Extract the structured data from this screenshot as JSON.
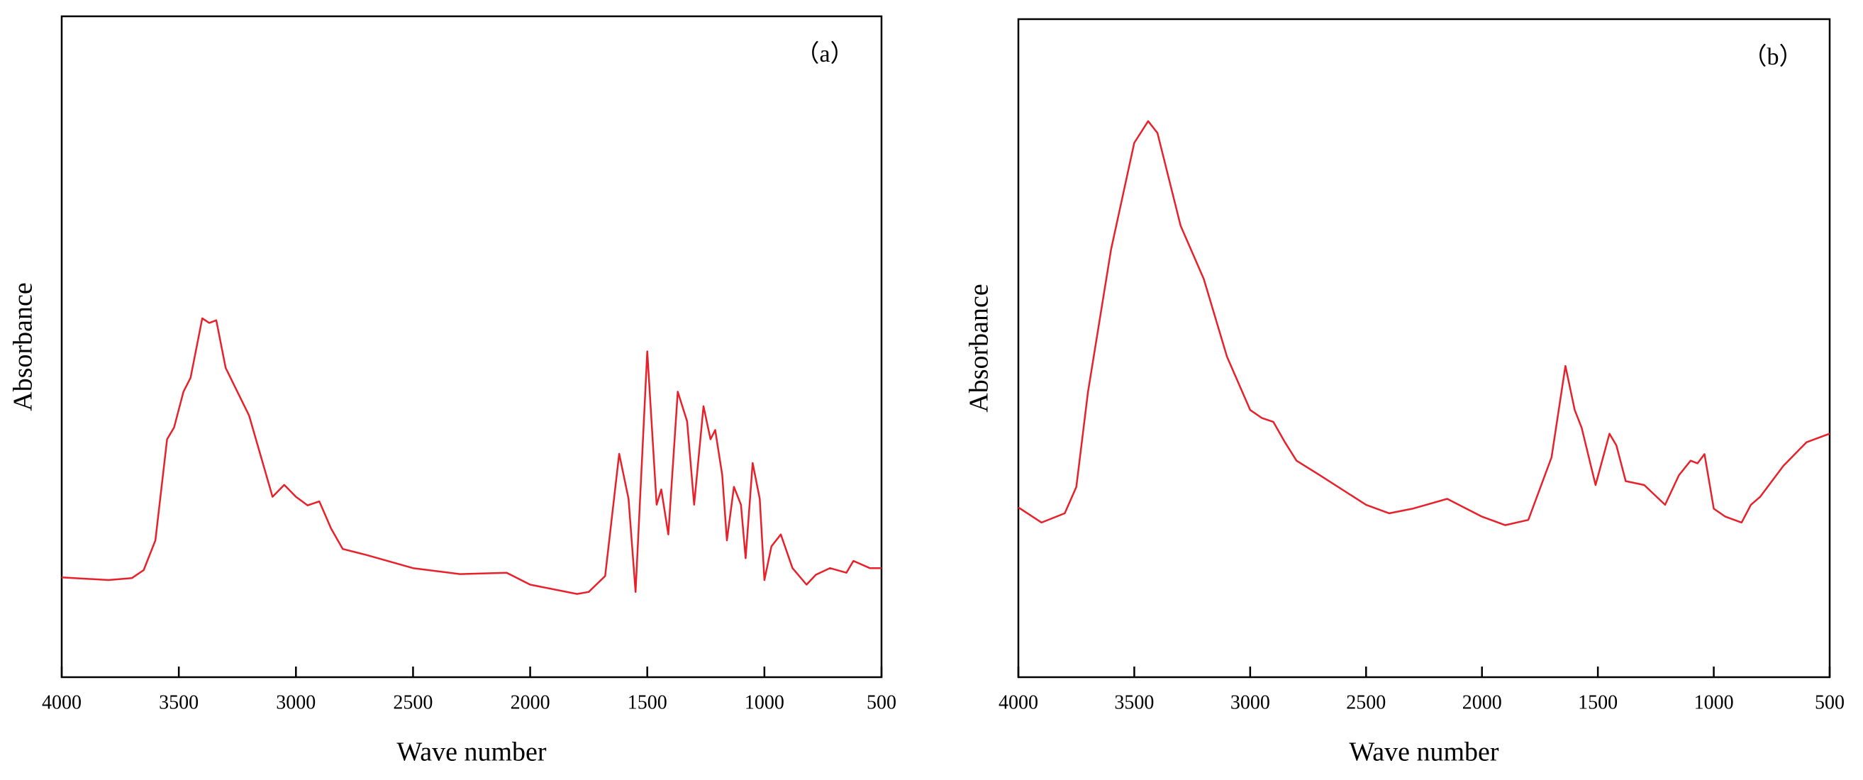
{
  "chart_data": [
    {
      "type": "line",
      "annotation": "（a）",
      "xlabel": "Wave number",
      "ylabel": "Absorbance",
      "xlim": [
        4000,
        500
      ],
      "xticks": [
        4000,
        3500,
        3000,
        2500,
        2000,
        1500,
        1000,
        500
      ],
      "ylim": [
        0,
        100
      ],
      "color": "#e8202a",
      "x": [
        4000,
        3800,
        3700,
        3650,
        3600,
        3550,
        3520,
        3480,
        3450,
        3400,
        3370,
        3340,
        3300,
        3200,
        3100,
        3050,
        3000,
        2950,
        2900,
        2850,
        2800,
        2700,
        2500,
        2300,
        2100,
        2000,
        1800,
        1750,
        1680,
        1620,
        1580,
        1550,
        1500,
        1460,
        1440,
        1410,
        1370,
        1330,
        1300,
        1260,
        1230,
        1210,
        1180,
        1160,
        1130,
        1100,
        1080,
        1050,
        1020,
        1000,
        970,
        930,
        880,
        820,
        780,
        720,
        650,
        620,
        550,
        500
      ],
      "values": [
        15.1,
        14.7,
        15,
        16.2,
        20.7,
        36,
        37.8,
        43.2,
        45.3,
        54.3,
        53.6,
        54,
        46.8,
        39.6,
        27.3,
        29.1,
        27.3,
        26,
        26.6,
        22.5,
        19.4,
        18.5,
        16.5,
        15.6,
        15.8,
        14,
        12.6,
        12.9,
        15.3,
        33.8,
        27,
        12.9,
        49.3,
        26.1,
        28.4,
        21.6,
        43.2,
        38.7,
        26.1,
        41,
        36,
        37.4,
        30.6,
        20.7,
        28.8,
        26.1,
        18,
        32.4,
        27,
        14.7,
        19.8,
        21.6,
        16.5,
        14,
        15.5,
        16.5,
        15.8,
        17.6,
        16.5,
        16.5
      ]
    },
    {
      "type": "line",
      "annotation": "（b）",
      "xlabel": "Wave number",
      "ylabel": "Absorbance",
      "xlim": [
        4000,
        500
      ],
      "xticks": [
        4000,
        3500,
        3000,
        2500,
        2000,
        1500,
        1000,
        500
      ],
      "ylim": [
        0,
        100
      ],
      "color": "#e8202a",
      "x": [
        4000,
        3900,
        3800,
        3750,
        3700,
        3600,
        3500,
        3440,
        3400,
        3300,
        3200,
        3100,
        3000,
        2950,
        2900,
        2850,
        2800,
        2700,
        2500,
        2400,
        2300,
        2150,
        2000,
        1900,
        1800,
        1700,
        1640,
        1600,
        1570,
        1510,
        1450,
        1420,
        1380,
        1300,
        1210,
        1150,
        1100,
        1070,
        1040,
        1000,
        950,
        880,
        840,
        800,
        700,
        600,
        500
      ],
      "values": [
        25.8,
        23.5,
        24.9,
        28.9,
        43.3,
        65,
        81.2,
        84.5,
        82.7,
        68.6,
        60.5,
        48.7,
        40.6,
        39.4,
        38.8,
        35.7,
        32.9,
        30.7,
        26.2,
        24.9,
        25.6,
        27.1,
        24.4,
        23.1,
        23.9,
        33.4,
        47.3,
        40.6,
        37.9,
        29.2,
        37,
        35.2,
        29.8,
        29.2,
        26.2,
        30.7,
        32.9,
        32.5,
        33.9,
        25.6,
        24.4,
        23.5,
        26.2,
        27.4,
        32.1,
        35.7,
        37
      ]
    }
  ]
}
